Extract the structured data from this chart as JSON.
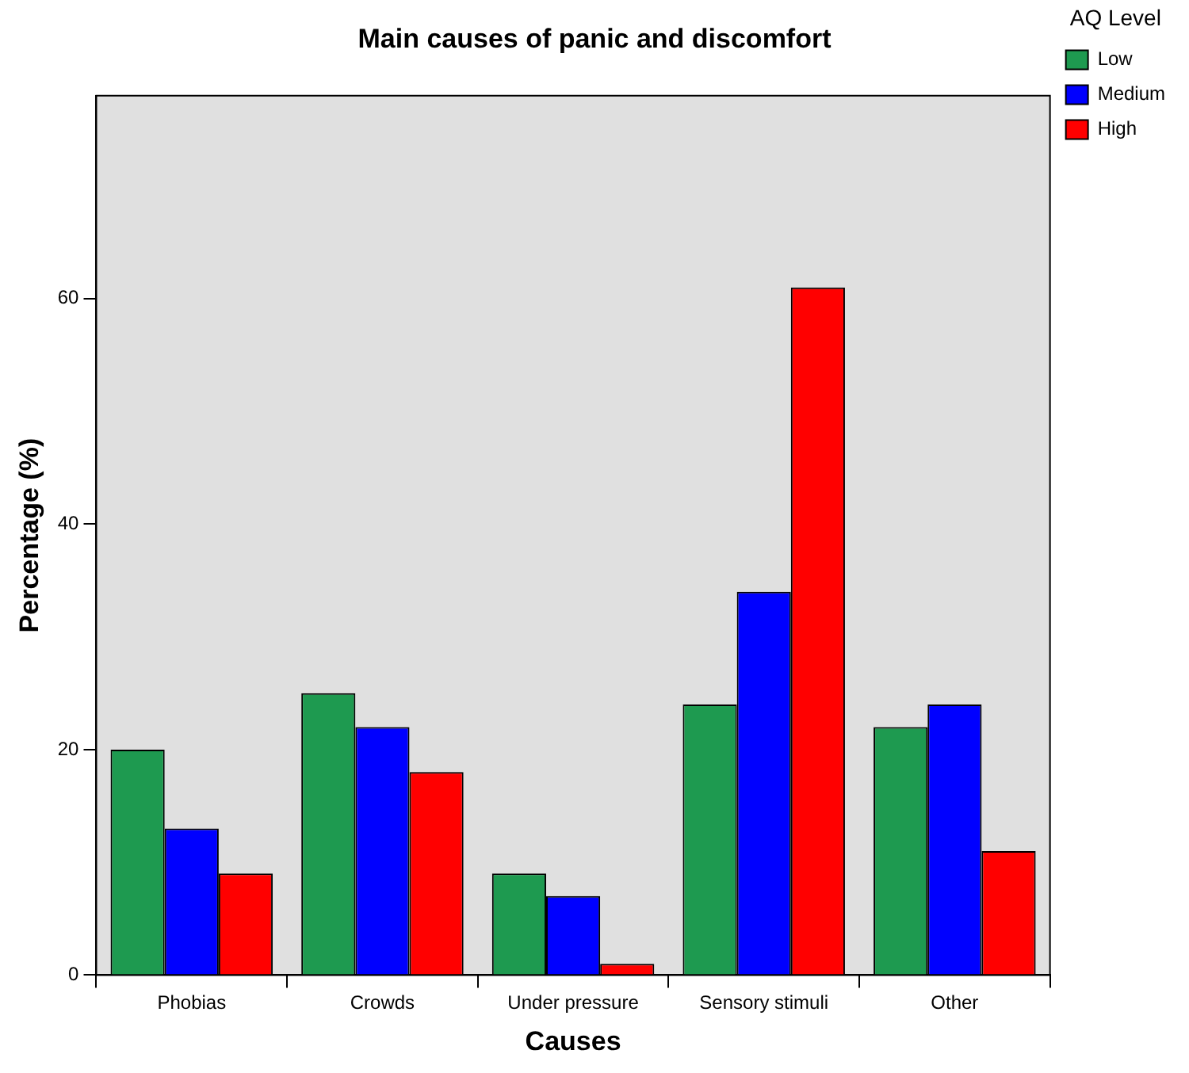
{
  "chart_data": {
    "type": "bar",
    "title": "Main causes of panic and discomfort",
    "xlabel": "Causes",
    "ylabel": "Percentage (%)",
    "legend_title": "AQ Level",
    "categories": [
      "Phobias",
      "Crowds",
      "Under pressure",
      "Sensory stimuli",
      "Other"
    ],
    "series": [
      {
        "name": "Low",
        "color": "#1e9a50",
        "values": [
          20,
          25,
          9,
          24,
          22
        ]
      },
      {
        "name": "Medium",
        "color": "#0000ff",
        "values": [
          13,
          22,
          7,
          34,
          24
        ]
      },
      {
        "name": "High",
        "color": "#ff0000",
        "values": [
          9,
          18,
          1,
          61,
          11
        ]
      }
    ],
    "ylim": [
      0,
      78
    ],
    "yticks": [
      0,
      20,
      40,
      60
    ],
    "grid": false,
    "legend": "top right"
  }
}
